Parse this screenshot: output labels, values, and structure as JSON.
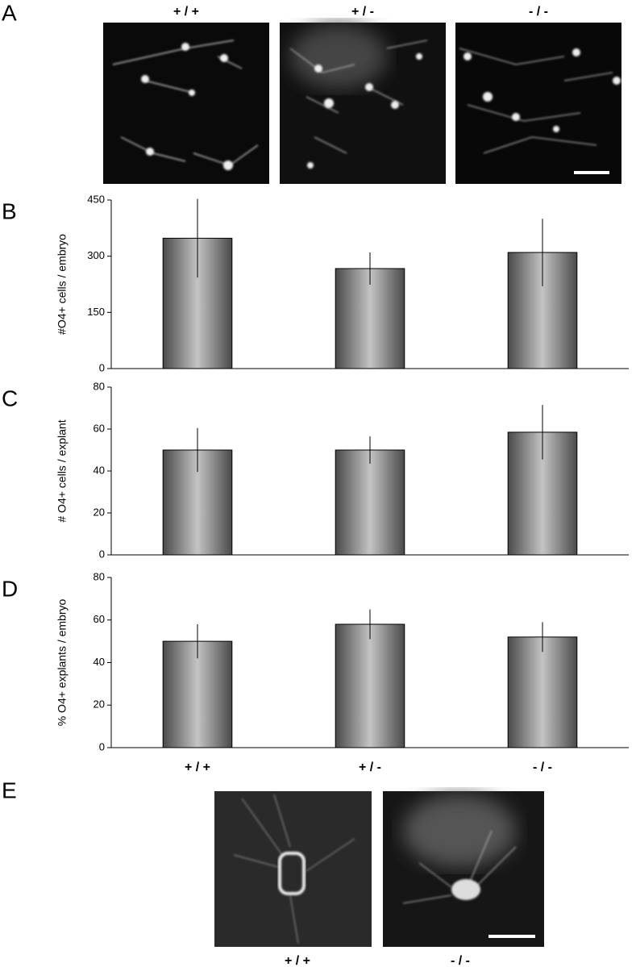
{
  "panels": {
    "A": {
      "label": "A",
      "captions": [
        "+ / +",
        "+ / -",
        "- / -"
      ]
    },
    "E": {
      "label": "E",
      "captions": [
        "+ / +",
        "- / -"
      ]
    }
  },
  "chart_data": [
    {
      "type": "bar",
      "label": "B",
      "ylabel": "#O4+ cells / embryo",
      "values": [
        348,
        267,
        310
      ],
      "errors": [
        105,
        43,
        90
      ],
      "color": "#a8a8a8",
      "ylim": [
        0,
        450
      ],
      "yticks": [
        0,
        150,
        300,
        450
      ]
    },
    {
      "type": "bar",
      "label": "C",
      "ylabel": "# O4+ cells / explant",
      "values": [
        50,
        50,
        58.5
      ],
      "errors": [
        10.5,
        6.5,
        13
      ],
      "color": "#a8a8a8",
      "ylim": [
        0,
        80
      ],
      "yticks": [
        0,
        20,
        40,
        60,
        80
      ]
    },
    {
      "type": "bar",
      "label": "D",
      "ylabel": "% O4+ explants / embryo",
      "categories": [
        "+ / +",
        "+ / -",
        "- / -"
      ],
      "values": [
        50,
        58,
        52
      ],
      "errors": [
        8,
        7,
        7
      ],
      "color": "#a8a8a8",
      "ylim": [
        0,
        80
      ],
      "yticks": [
        0,
        20,
        40,
        60,
        80
      ]
    }
  ]
}
